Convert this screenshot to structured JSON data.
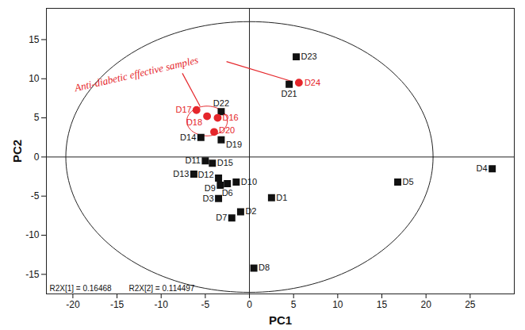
{
  "chart_data": {
    "type": "scatter",
    "x_label": "PC1",
    "y_label": "PC2",
    "xlim": [
      -23,
      30
    ],
    "xticks": [
      -20,
      -15,
      -10,
      -5,
      0,
      5,
      10,
      15,
      20,
      25
    ],
    "ylim": [
      -17.5,
      19
    ],
    "yticks": [
      -15,
      -10,
      -5,
      0,
      5,
      10,
      15
    ],
    "series": [
      {
        "color": "#111111",
        "marker": "square",
        "points": [
          {
            "label": "D1",
            "x": 2.5,
            "y": -5.2
          },
          {
            "label": "D2",
            "x": -1,
            "y": -7
          },
          {
            "label": "D3",
            "x": -3.5,
            "y": -5.3
          },
          {
            "label": "D4",
            "x": 27.5,
            "y": -1.5
          },
          {
            "label": "D5",
            "x": 16.8,
            "y": -3.2
          },
          {
            "label": "D6",
            "x": -2.5,
            "y": -3.4
          },
          {
            "label": "D7",
            "x": -2,
            "y": -7.8
          },
          {
            "label": "D8",
            "x": 0.5,
            "y": -14.2
          },
          {
            "label": "D9",
            "x": -3.3,
            "y": -3.6
          },
          {
            "label": "D10",
            "x": -1.5,
            "y": -3.2
          },
          {
            "label": "D11",
            "x": -5,
            "y": -0.5
          },
          {
            "label": "D12",
            "x": -3.5,
            "y": -2.7
          },
          {
            "label": "D13",
            "x": -6.3,
            "y": -2.2
          },
          {
            "label": "D14",
            "x": -5.5,
            "y": 2.5
          },
          {
            "label": "D15",
            "x": -4.2,
            "y": -0.8
          },
          {
            "label": "D19",
            "x": -3.2,
            "y": 2.2
          },
          {
            "label": "D21",
            "x": 4.5,
            "y": 9.3
          },
          {
            "label": "D22",
            "x": -3.2,
            "y": 5.8
          },
          {
            "label": "D23",
            "x": 5.3,
            "y": 12.8
          }
        ]
      },
      {
        "color": "#e5262b",
        "marker": "circle",
        "points": [
          {
            "label": "D16",
            "x": -3.6,
            "y": 5.0
          },
          {
            "label": "D17",
            "x": -6,
            "y": 6
          },
          {
            "label": "D18",
            "x": -4.8,
            "y": 5.2
          },
          {
            "label": "D20",
            "x": -4,
            "y": 3.2
          },
          {
            "label": "D24",
            "x": 5.6,
            "y": 9.5
          }
        ]
      }
    ],
    "ellipse": {
      "center": [
        0,
        0
      ],
      "radii": [
        20.8,
        17.3
      ]
    },
    "annotations": [
      "Anti-diabetic effective samples",
      "R2X[1] = 0.16468",
      "R2X[2] = 0.114497"
    ]
  }
}
